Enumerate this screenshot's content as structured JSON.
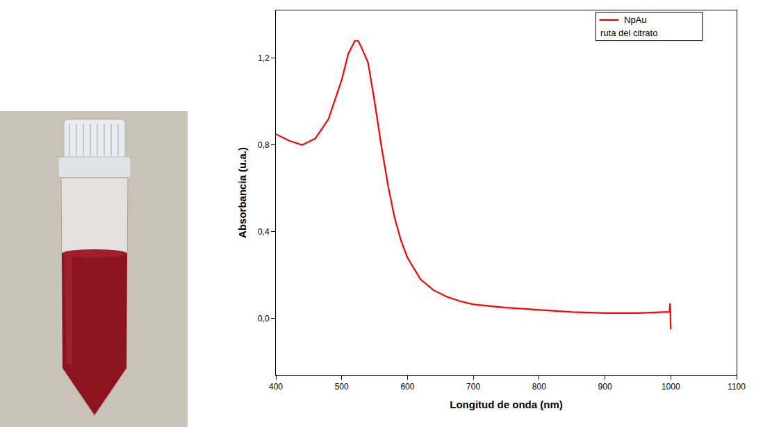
{
  "chart_data": {
    "type": "line",
    "x_label": "Longitud de onda (nm)",
    "y_label": "Absorbancia (u.a.)",
    "x": [
      400,
      420,
      440,
      460,
      480,
      500,
      510,
      520,
      525,
      530,
      540,
      550,
      560,
      570,
      580,
      590,
      600,
      620,
      640,
      660,
      680,
      700,
      750,
      800,
      850,
      900,
      950,
      990,
      998,
      999,
      1000
    ],
    "series": [
      {
        "name": "NpAu",
        "color": "#ff0000",
        "line_style": "solid",
        "values": [
          0.85,
          0.82,
          0.8,
          0.83,
          0.92,
          1.1,
          1.22,
          1.28,
          1.28,
          1.25,
          1.18,
          1.0,
          0.8,
          0.62,
          0.47,
          0.36,
          0.28,
          0.18,
          0.13,
          0.1,
          0.08,
          0.065,
          0.05,
          0.04,
          0.03,
          0.025,
          0.025,
          0.03,
          0.03,
          0.07,
          -0.05
        ]
      }
    ],
    "annotations": [
      "ruta del citrato"
    ],
    "xlim": [
      400,
      1100
    ],
    "xticks": [
      400,
      500,
      600,
      700,
      800,
      900,
      1000,
      1100
    ],
    "ylim": [
      -0.26,
      1.42
    ],
    "yticks": [
      {
        "value": 0,
        "label": "0,0"
      },
      {
        "value": 0.4,
        "label": "0,4"
      },
      {
        "value": 0.8,
        "label": "0,8"
      },
      {
        "value": 1.2,
        "label": "1,2"
      }
    ],
    "grid": false,
    "legend": "upper right"
  }
}
